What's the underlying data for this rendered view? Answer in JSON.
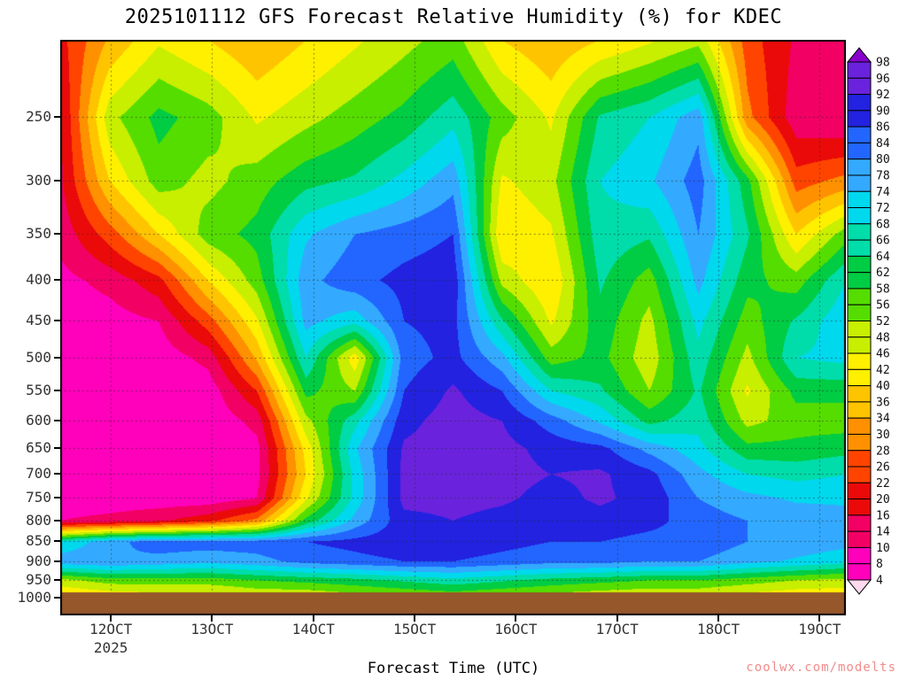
{
  "page": {
    "title": "2025101112 GFS Forecast Relative Humidity (%) for KDEC",
    "xlabel": "Forecast Time (UTC)",
    "watermark": "coolwx.com/modelts"
  },
  "chart_data": {
    "type": "heatmap",
    "title": "2025101112 GFS Forecast Relative Humidity (%) for KDEC",
    "xlabel": "Forecast Time (UTC)",
    "x_tick_labels": [
      "12OCT",
      "13OCT",
      "14OCT",
      "15OCT",
      "16OCT",
      "17OCT",
      "18OCT",
      "19OCT"
    ],
    "x_tick_hours": [
      12,
      36,
      60,
      84,
      108,
      132,
      156,
      180
    ],
    "x_year_label": "2025",
    "x_range_hours": [
      0,
      186
    ],
    "y_scale": "log",
    "y_range_hpa": [
      200,
      1050
    ],
    "y_tick_values": [
      250,
      300,
      350,
      400,
      450,
      500,
      550,
      600,
      650,
      700,
      750,
      800,
      850,
      900,
      950,
      1000
    ],
    "pressure_levels": [
      200,
      250,
      300,
      350,
      400,
      450,
      500,
      550,
      600,
      650,
      700,
      750,
      800,
      850,
      900,
      950,
      1000
    ],
    "values_rh_percent": [
      [
        20,
        35,
        45,
        40,
        35,
        40,
        45,
        50,
        55,
        40,
        35,
        40,
        45,
        50,
        25,
        15,
        12
      ],
      [
        15,
        50,
        60,
        55,
        45,
        50,
        55,
        60,
        68,
        55,
        45,
        65,
        70,
        80,
        30,
        12,
        10
      ],
      [
        15,
        40,
        55,
        50,
        55,
        62,
        65,
        72,
        80,
        45,
        50,
        70,
        75,
        85,
        60,
        25,
        30
      ],
      [
        12,
        25,
        40,
        55,
        60,
        75,
        82,
        85,
        88,
        40,
        45,
        68,
        65,
        82,
        65,
        40,
        55
      ],
      [
        8,
        12,
        20,
        40,
        55,
        80,
        86,
        90,
        92,
        50,
        40,
        65,
        55,
        78,
        60,
        55,
        70
      ],
      [
        6,
        7,
        10,
        25,
        45,
        78,
        72,
        88,
        90,
        65,
        45,
        62,
        50,
        72,
        55,
        65,
        75
      ],
      [
        5,
        5,
        6,
        12,
        35,
        70,
        42,
        85,
        90,
        78,
        55,
        60,
        48,
        68,
        50,
        70,
        72
      ],
      [
        5,
        5,
        5,
        6,
        22,
        60,
        52,
        88,
        95,
        88,
        70,
        65,
        52,
        65,
        45,
        60,
        60
      ],
      [
        5,
        5,
        5,
        5,
        12,
        50,
        68,
        92,
        97,
        94,
        85,
        75,
        62,
        68,
        50,
        55,
        55
      ],
      [
        5,
        5,
        5,
        5,
        8,
        42,
        75,
        95,
        97,
        96,
        92,
        90,
        80,
        72,
        60,
        60,
        62
      ],
      [
        5,
        5,
        5,
        5,
        8,
        40,
        72,
        96,
        97,
        96,
        94,
        95,
        90,
        78,
        70,
        68,
        70
      ],
      [
        6,
        6,
        6,
        6,
        10,
        45,
        72,
        96,
        96,
        95,
        92,
        95,
        92,
        82,
        78,
        75,
        75
      ],
      [
        10,
        12,
        15,
        20,
        30,
        60,
        78,
        92,
        94,
        92,
        90,
        92,
        90,
        85,
        82,
        80,
        78
      ],
      [
        70,
        80,
        85,
        85,
        85,
        88,
        90,
        92,
        92,
        90,
        88,
        88,
        86,
        86,
        82,
        80,
        78
      ],
      [
        80,
        82,
        80,
        78,
        80,
        84,
        86,
        88,
        88,
        86,
        84,
        84,
        82,
        82,
        78,
        75,
        72
      ],
      [
        50,
        55,
        55,
        55,
        58,
        60,
        62,
        65,
        68,
        65,
        62,
        60,
        58,
        58,
        55,
        52,
        50
      ],
      [
        38,
        40,
        42,
        42,
        45,
        45,
        48,
        50,
        52,
        50,
        48,
        46,
        45,
        45,
        42,
        40,
        40
      ]
    ],
    "color_scale": [
      {
        "v": 0,
        "c": "#ffd9ee"
      },
      {
        "v": 4,
        "c": "#ff00bb"
      },
      {
        "v": 10,
        "c": "#f30064"
      },
      {
        "v": 16,
        "c": "#ea0a0a"
      },
      {
        "v": 22,
        "c": "#ff4400"
      },
      {
        "v": 28,
        "c": "#ff9000"
      },
      {
        "v": 34,
        "c": "#ffc400"
      },
      {
        "v": 40,
        "c": "#fff000"
      },
      {
        "v": 46,
        "c": "#c8ee00"
      },
      {
        "v": 52,
        "c": "#55dd00"
      },
      {
        "v": 58,
        "c": "#00cc44"
      },
      {
        "v": 64,
        "c": "#00ddaa"
      },
      {
        "v": 70,
        "c": "#00d8ee"
      },
      {
        "v": 76,
        "c": "#33aaff"
      },
      {
        "v": 82,
        "c": "#2266ff"
      },
      {
        "v": 88,
        "c": "#2222e0"
      },
      {
        "v": 94,
        "c": "#6a22dd"
      },
      {
        "v": 98,
        "c": "#8800cc"
      }
    ],
    "colorbar_labels": [
      98,
      96,
      92,
      90,
      86,
      84,
      80,
      78,
      74,
      72,
      68,
      66,
      64,
      62,
      58,
      56,
      52,
      48,
      46,
      42,
      40,
      36,
      34,
      30,
      28,
      26,
      22,
      20,
      16,
      14,
      10,
      8,
      4
    ],
    "terrain_color": "#96572a",
    "terrain_top_hpa": 985
  }
}
